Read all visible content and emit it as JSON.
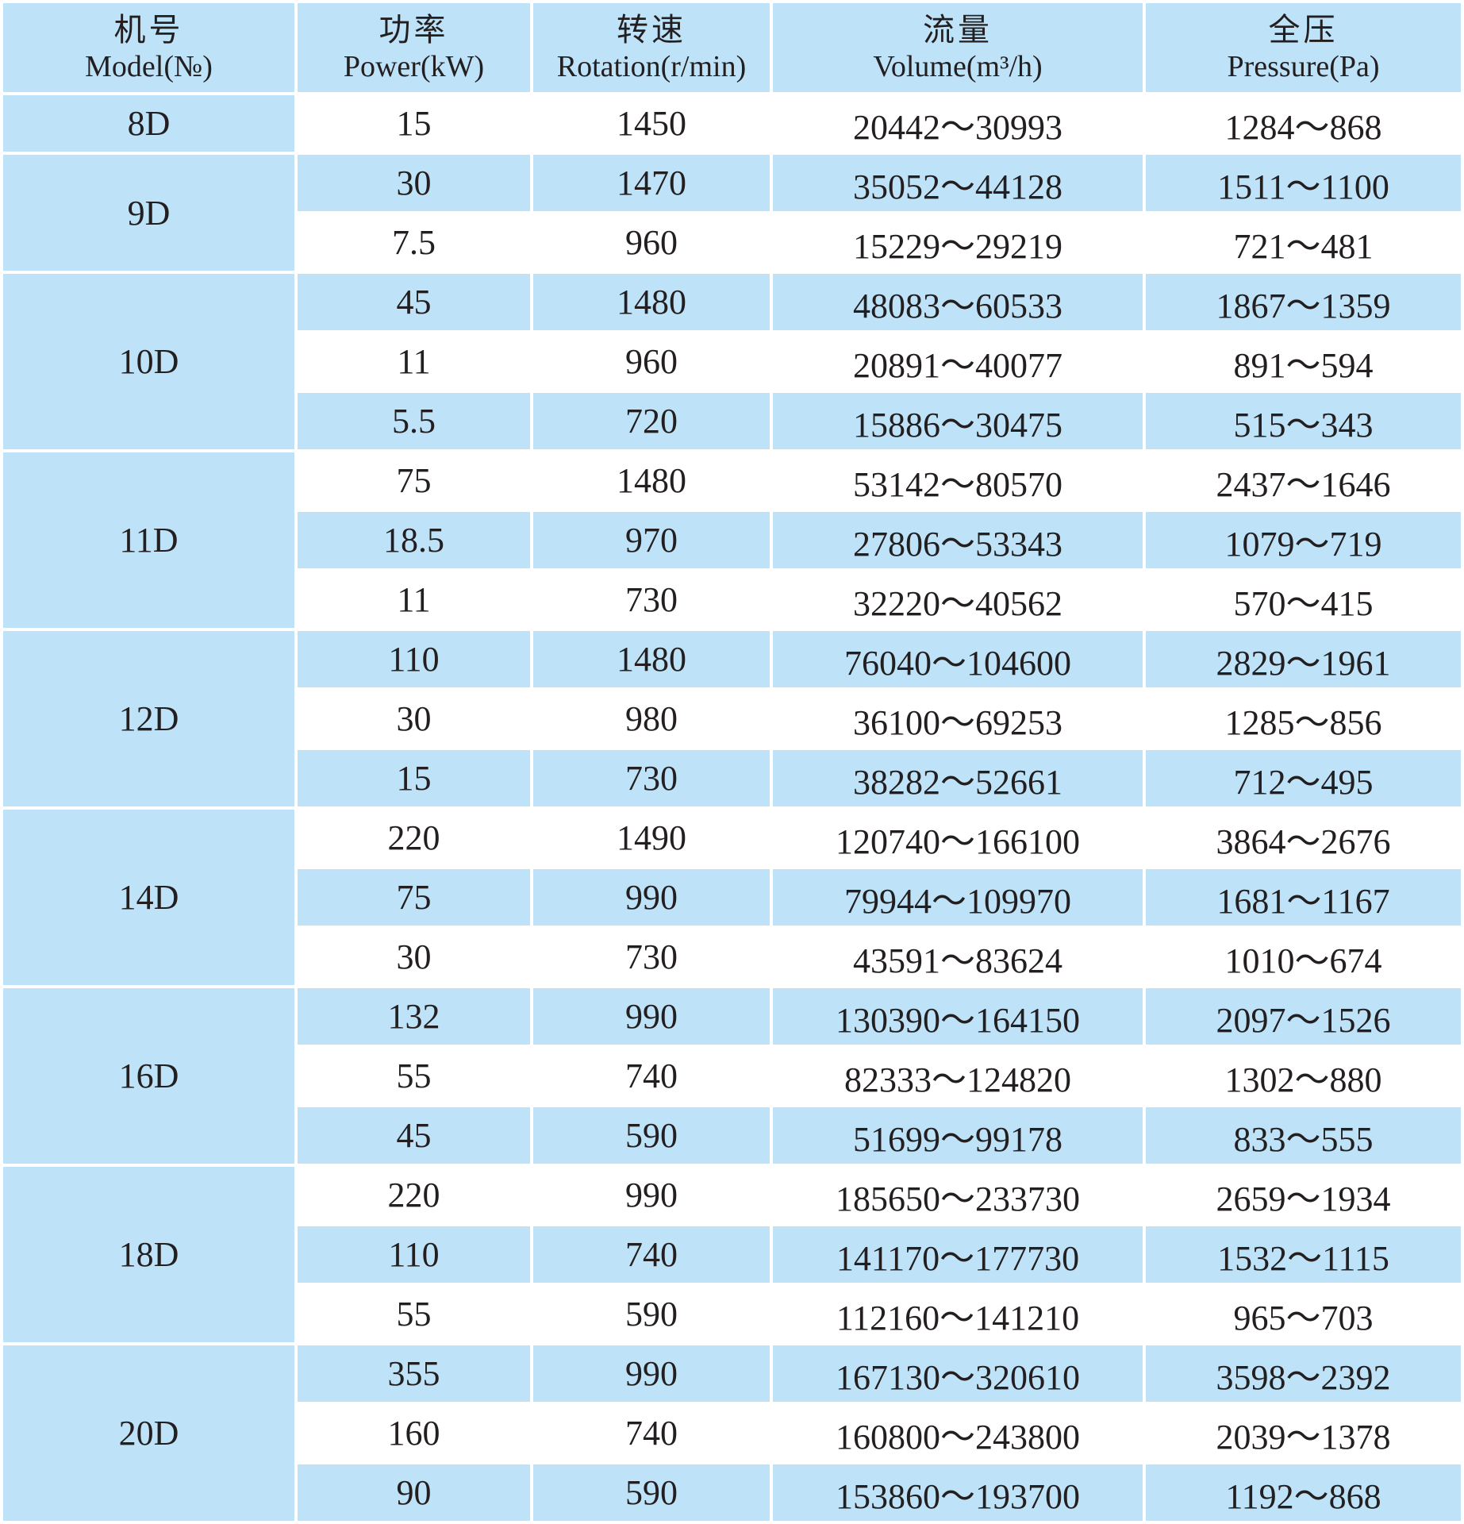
{
  "header": [
    {
      "cn": "机号",
      "en": "Model(№)"
    },
    {
      "cn": "功率",
      "en": "Power(kW)"
    },
    {
      "cn": "转速",
      "en": "Rotation(r/min)"
    },
    {
      "cn": "流量",
      "en": "Volume(m³/h)"
    },
    {
      "cn": "全压",
      "en": "Pressure(Pa)"
    }
  ],
  "colors": {
    "header_bg": "#bee3f8",
    "shaded_row": "#bee3f8",
    "plain_row": "#ffffff",
    "text": "#231f20"
  },
  "models": [
    {
      "model": "8D",
      "rows": [
        {
          "power": "15",
          "rotation": "1450",
          "volume": "20442～30993",
          "pressure": "1284～868"
        }
      ]
    },
    {
      "model": "9D",
      "rows": [
        {
          "power": "30",
          "rotation": "1470",
          "volume": "35052～44128",
          "pressure": "1511～1100"
        },
        {
          "power": "7.5",
          "rotation": "960",
          "volume": "15229～29219",
          "pressure": "721～481"
        }
      ]
    },
    {
      "model": "10D",
      "rows": [
        {
          "power": "45",
          "rotation": "1480",
          "volume": "48083～60533",
          "pressure": "1867～1359"
        },
        {
          "power": "11",
          "rotation": "960",
          "volume": "20891～40077",
          "pressure": "891～594"
        },
        {
          "power": "5.5",
          "rotation": "720",
          "volume": "15886～30475",
          "pressure": "515～343"
        }
      ]
    },
    {
      "model": "11D",
      "rows": [
        {
          "power": "75",
          "rotation": "1480",
          "volume": "53142～80570",
          "pressure": "2437～1646"
        },
        {
          "power": "18.5",
          "rotation": "970",
          "volume": "27806～53343",
          "pressure": "1079～719"
        },
        {
          "power": "11",
          "rotation": "730",
          "volume": "32220～40562",
          "pressure": "570～415"
        }
      ]
    },
    {
      "model": "12D",
      "rows": [
        {
          "power": "110",
          "rotation": "1480",
          "volume": "76040～104600",
          "pressure": "2829～1961"
        },
        {
          "power": "30",
          "rotation": "980",
          "volume": "36100～69253",
          "pressure": "1285～856"
        },
        {
          "power": "15",
          "rotation": "730",
          "volume": "38282～52661",
          "pressure": "712～495"
        }
      ]
    },
    {
      "model": "14D",
      "rows": [
        {
          "power": "220",
          "rotation": "1490",
          "volume": "120740～166100",
          "pressure": "3864～2676"
        },
        {
          "power": "75",
          "rotation": "990",
          "volume": "79944～109970",
          "pressure": "1681～1167"
        },
        {
          "power": "30",
          "rotation": "730",
          "volume": "43591～83624",
          "pressure": "1010～674"
        }
      ]
    },
    {
      "model": "16D",
      "rows": [
        {
          "power": "132",
          "rotation": "990",
          "volume": "130390～164150",
          "pressure": "2097～1526"
        },
        {
          "power": "55",
          "rotation": "740",
          "volume": "82333～124820",
          "pressure": "1302～880"
        },
        {
          "power": "45",
          "rotation": "590",
          "volume": "51699～99178",
          "pressure": "833～555"
        }
      ]
    },
    {
      "model": "18D",
      "rows": [
        {
          "power": "220",
          "rotation": "990",
          "volume": "185650～233730",
          "pressure": "2659～1934"
        },
        {
          "power": "110",
          "rotation": "740",
          "volume": "141170～177730",
          "pressure": "1532～1115"
        },
        {
          "power": "55",
          "rotation": "590",
          "volume": "112160～141210",
          "pressure": "965～703"
        }
      ]
    },
    {
      "model": "20D",
      "rows": [
        {
          "power": "355",
          "rotation": "990",
          "volume": "167130～320610",
          "pressure": "3598～2392"
        },
        {
          "power": "160",
          "rotation": "740",
          "volume": "160800～243800",
          "pressure": "2039～1378"
        },
        {
          "power": "90",
          "rotation": "590",
          "volume": "153860～193700",
          "pressure": "1192～868"
        }
      ]
    }
  ]
}
